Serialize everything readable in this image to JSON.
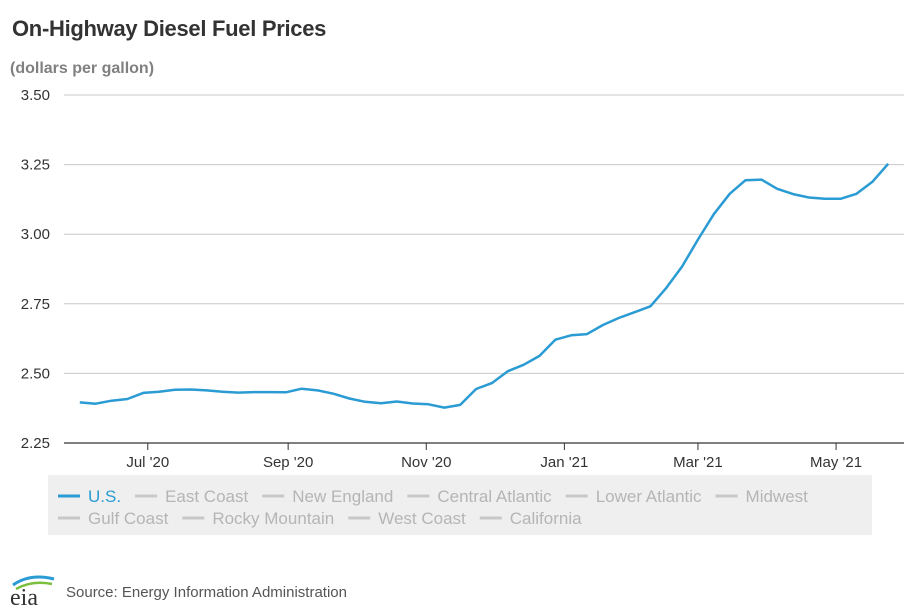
{
  "chart_data": {
    "type": "line",
    "title": "On-Highway Diesel Fuel Prices",
    "subtitle": "(dollars per gallon)",
    "ylim": [
      2.25,
      3.5
    ],
    "yticks": [
      "2.25",
      "2.50",
      "2.75",
      "3.00",
      "3.25",
      "3.50"
    ],
    "grid": true,
    "xticks": [
      {
        "label": "Jul '20",
        "x": "2020-07-01"
      },
      {
        "label": "Sep '20",
        "x": "2020-09-01"
      },
      {
        "label": "Nov '20",
        "x": "2020-11-01"
      },
      {
        "label": "Jan '21",
        "x": "2021-01-01"
      },
      {
        "label": "Mar '21",
        "x": "2021-03-01"
      },
      {
        "label": "May '21",
        "x": "2021-05-01"
      }
    ],
    "xlim": [
      "2020-05-25",
      "2021-05-31"
    ],
    "series": [
      {
        "name": "U.S.",
        "color": "#2a9bd3",
        "x": [
          "2020-06-01",
          "2020-06-08",
          "2020-06-15",
          "2020-06-22",
          "2020-06-29",
          "2020-07-06",
          "2020-07-13",
          "2020-07-20",
          "2020-07-27",
          "2020-08-03",
          "2020-08-10",
          "2020-08-17",
          "2020-08-24",
          "2020-08-31",
          "2020-09-07",
          "2020-09-14",
          "2020-09-21",
          "2020-09-28",
          "2020-10-05",
          "2020-10-12",
          "2020-10-19",
          "2020-10-26",
          "2020-11-02",
          "2020-11-09",
          "2020-11-16",
          "2020-11-23",
          "2020-11-30",
          "2020-12-07",
          "2020-12-14",
          "2020-12-21",
          "2020-12-28",
          "2021-01-04",
          "2021-01-11",
          "2021-01-18",
          "2021-01-25",
          "2021-02-01",
          "2021-02-08",
          "2021-02-15",
          "2021-02-22",
          "2021-03-01",
          "2021-03-08",
          "2021-03-15",
          "2021-03-22",
          "2021-03-29",
          "2021-04-05",
          "2021-04-12",
          "2021-04-19",
          "2021-04-26",
          "2021-05-03",
          "2021-05-10",
          "2021-05-17",
          "2021-05-24"
        ],
        "values": [
          2.396,
          2.391,
          2.402,
          2.408,
          2.43,
          2.434,
          2.441,
          2.442,
          2.439,
          2.434,
          2.431,
          2.433,
          2.433,
          2.432,
          2.445,
          2.439,
          2.427,
          2.41,
          2.398,
          2.393,
          2.399,
          2.392,
          2.389,
          2.377,
          2.387,
          2.444,
          2.465,
          2.508,
          2.531,
          2.563,
          2.621,
          2.637,
          2.641,
          2.674,
          2.699,
          2.72,
          2.741,
          2.807,
          2.884,
          2.981,
          3.072,
          3.145,
          3.194,
          3.196,
          3.163,
          3.144,
          3.132,
          3.127,
          3.127,
          3.145,
          3.188,
          3.253
        ]
      },
      {
        "name": "East Coast",
        "color": "#c8c8c8"
      },
      {
        "name": "New England",
        "color": "#c8c8c8"
      },
      {
        "name": "Central Atlantic",
        "color": "#c8c8c8"
      },
      {
        "name": "Lower Atlantic",
        "color": "#c8c8c8"
      },
      {
        "name": "Midwest",
        "color": "#c8c8c8"
      },
      {
        "name": "Gulf Coast",
        "color": "#c8c8c8"
      },
      {
        "name": "Rocky Mountain",
        "color": "#c8c8c8"
      },
      {
        "name": "West Coast",
        "color": "#c8c8c8"
      },
      {
        "name": "California",
        "color": "#c8c8c8"
      }
    ]
  },
  "legend": {
    "active_color": "#2a9bd3",
    "inactive_color": "#c8c8c8",
    "active_text_color": "#2a9bd3",
    "inactive_text_color": "#b5b5b5",
    "background": "#efefef"
  },
  "footer": {
    "logo_text": "eia",
    "source": "Source: Energy Information Administration"
  }
}
